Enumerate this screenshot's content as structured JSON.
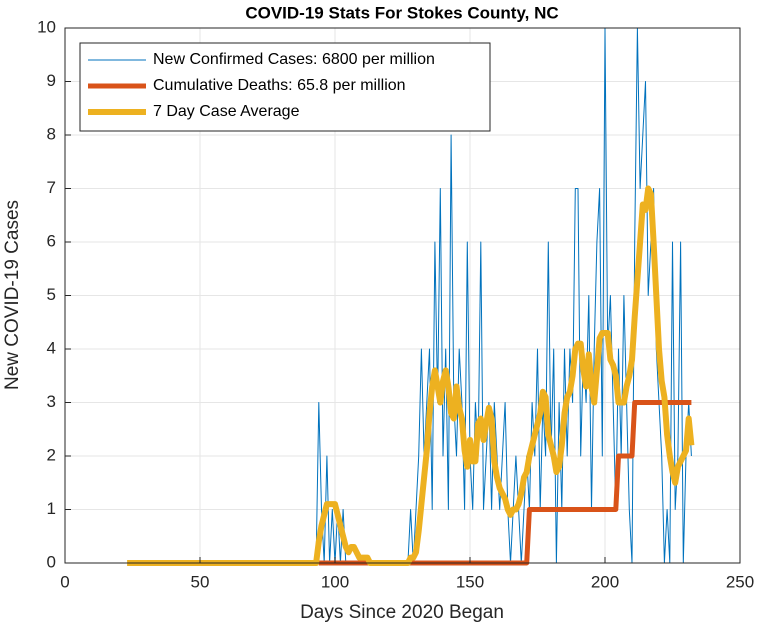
{
  "chart_data": {
    "type": "line",
    "title": "COVID-19 Stats For Stokes County, NC",
    "x_label": "Days Since 2020 Began",
    "y_label": "New COVID-19 Cases",
    "xlim": [
      0,
      250
    ],
    "xticks": [
      0,
      50,
      100,
      150,
      200,
      250
    ],
    "ylim": [
      0,
      10
    ],
    "yticks": [
      0,
      1,
      2,
      3,
      4,
      5,
      6,
      7,
      8,
      9,
      10
    ],
    "grid": true,
    "legend": "upper left",
    "x": [
      23,
      24,
      25,
      26,
      27,
      28,
      29,
      30,
      31,
      32,
      33,
      34,
      35,
      36,
      37,
      38,
      39,
      40,
      41,
      42,
      43,
      44,
      45,
      46,
      47,
      48,
      49,
      50,
      51,
      52,
      53,
      54,
      55,
      56,
      57,
      58,
      59,
      60,
      61,
      62,
      63,
      64,
      65,
      66,
      67,
      68,
      69,
      70,
      71,
      72,
      73,
      74,
      75,
      76,
      77,
      78,
      79,
      80,
      81,
      82,
      83,
      84,
      85,
      86,
      87,
      88,
      89,
      90,
      91,
      92,
      93,
      94,
      95,
      96,
      97,
      98,
      99,
      100,
      101,
      102,
      103,
      104,
      105,
      106,
      107,
      108,
      109,
      110,
      111,
      112,
      113,
      114,
      115,
      116,
      117,
      118,
      119,
      120,
      121,
      122,
      123,
      124,
      125,
      126,
      127,
      128,
      129,
      130,
      131,
      132,
      133,
      134,
      135,
      136,
      137,
      138,
      139,
      140,
      141,
      142,
      143,
      144,
      145,
      146,
      147,
      148,
      149,
      150,
      151,
      152,
      153,
      154,
      155,
      156,
      157,
      158,
      159,
      160,
      161,
      162,
      163,
      164,
      165,
      166,
      167,
      168,
      169,
      170,
      171,
      172,
      173,
      174,
      175,
      176,
      177,
      178,
      179,
      180,
      181,
      182,
      183,
      184,
      185,
      186,
      187,
      188,
      189,
      190,
      191,
      192,
      193,
      194,
      195,
      196,
      197,
      198,
      199,
      200,
      201,
      202,
      203,
      204,
      205,
      206,
      207,
      208,
      209,
      210,
      211,
      212,
      213,
      214,
      215,
      216,
      217,
      218,
      219,
      220,
      221,
      222,
      223,
      224,
      225,
      226,
      227,
      228,
      229,
      230,
      231,
      232
    ],
    "series": [
      {
        "name": "New Confirmed Cases: 6800 per million",
        "color": "#0072bd",
        "width": 1,
        "values": [
          0,
          0,
          0,
          0,
          0,
          0,
          0,
          0,
          0,
          0,
          0,
          0,
          0,
          0,
          0,
          0,
          0,
          0,
          0,
          0,
          0,
          0,
          0,
          0,
          0,
          0,
          0,
          0,
          0,
          0,
          0,
          0,
          0,
          0,
          0,
          0,
          0,
          0,
          0,
          0,
          0,
          0,
          0,
          0,
          0,
          0,
          0,
          0,
          0,
          0,
          0,
          0,
          0,
          0,
          0,
          0,
          0,
          0,
          0,
          0,
          0,
          0,
          0,
          0,
          0,
          0,
          0,
          0,
          0,
          0,
          0,
          3,
          1,
          0,
          2,
          0,
          1,
          0,
          1,
          0,
          1,
          0,
          0,
          0,
          0,
          0,
          0,
          0,
          0,
          0,
          0,
          0,
          0,
          0,
          0,
          0,
          0,
          0,
          0,
          0,
          0,
          0,
          0,
          0,
          0,
          1,
          0,
          1,
          2,
          4,
          2,
          3,
          4,
          1,
          6,
          3,
          7,
          2,
          4,
          1,
          8,
          3,
          2,
          4,
          3,
          1,
          6,
          2,
          1,
          3,
          2,
          6,
          1,
          2,
          3,
          1,
          3,
          2,
          1,
          2,
          3,
          1,
          0,
          1,
          2,
          1,
          0,
          1,
          2,
          1,
          3,
          2,
          4,
          1,
          3,
          2,
          6,
          2,
          4,
          0,
          3,
          1,
          4,
          2,
          4,
          3,
          7,
          7,
          2,
          4,
          3,
          5,
          1,
          4,
          6,
          7,
          2,
          10,
          4,
          5,
          3,
          1,
          4,
          2,
          5,
          3,
          1,
          0,
          6,
          10,
          7,
          8,
          9,
          5,
          6,
          7,
          4,
          3,
          2,
          0,
          1,
          0,
          6,
          1,
          2,
          6,
          0,
          2,
          3,
          2
        ]
      },
      {
        "name": "Cumulative Deaths: 65.8 per million",
        "color": "#d95319",
        "width": 5,
        "values": [
          null,
          null,
          null,
          null,
          null,
          null,
          null,
          null,
          null,
          null,
          null,
          null,
          null,
          null,
          null,
          null,
          null,
          null,
          null,
          null,
          null,
          null,
          null,
          null,
          null,
          null,
          null,
          null,
          null,
          null,
          null,
          null,
          null,
          null,
          null,
          null,
          null,
          null,
          null,
          null,
          null,
          null,
          null,
          null,
          null,
          null,
          null,
          null,
          null,
          null,
          null,
          null,
          null,
          null,
          null,
          null,
          null,
          null,
          null,
          null,
          null,
          null,
          null,
          null,
          null,
          null,
          null,
          null,
          null,
          null,
          null,
          0,
          0,
          0,
          0,
          0,
          0,
          0,
          0,
          0,
          0,
          0,
          0,
          0,
          0,
          0,
          0,
          0,
          0,
          0,
          0,
          0,
          0,
          0,
          0,
          0,
          0,
          0,
          0,
          0,
          0,
          0,
          0,
          0,
          0,
          0,
          0,
          0,
          0,
          0,
          0,
          0,
          0,
          0,
          0,
          0,
          0,
          0,
          0,
          0,
          0,
          0,
          0,
          0,
          0,
          0,
          0,
          0,
          0,
          0,
          0,
          0,
          0,
          0,
          0,
          0,
          0,
          0,
          0,
          0,
          0,
          0,
          0,
          0,
          0,
          0,
          0,
          0,
          0,
          1,
          1,
          1,
          1,
          1,
          1,
          1,
          1,
          1,
          1,
          1,
          1,
          1,
          1,
          1,
          1,
          1,
          1,
          1,
          1,
          1,
          1,
          1,
          1,
          1,
          1,
          1,
          1,
          1,
          1,
          1,
          1,
          1,
          2,
          2,
          2,
          2,
          2,
          2,
          3,
          3,
          3,
          3,
          3,
          3,
          3,
          3,
          3,
          3,
          3,
          3,
          3,
          3,
          3,
          3,
          3,
          3,
          3,
          3,
          3,
          3
        ]
      },
      {
        "name": "7 Day Case Average",
        "color": "#edb120",
        "width": 6,
        "values": [
          0,
          0,
          0,
          0,
          0,
          0,
          0,
          0,
          0,
          0,
          0,
          0,
          0,
          0,
          0,
          0,
          0,
          0,
          0,
          0,
          0,
          0,
          0,
          0,
          0,
          0,
          0,
          0,
          0,
          0,
          0,
          0,
          0,
          0,
          0,
          0,
          0,
          0,
          0,
          0,
          0,
          0,
          0,
          0,
          0,
          0,
          0,
          0,
          0,
          0,
          0,
          0,
          0,
          0,
          0,
          0,
          0,
          0,
          0,
          0,
          0,
          0,
          0,
          0,
          0,
          0,
          0,
          0,
          0,
          0,
          0,
          0.4,
          0.7,
          0.9,
          1.1,
          1.1,
          1.1,
          1.1,
          0.9,
          0.7,
          0.5,
          0.3,
          0.2,
          0.3,
          0.3,
          0.2,
          0.1,
          0.1,
          0.1,
          0.1,
          0,
          0,
          0,
          0,
          0,
          0,
          0,
          0,
          0,
          0,
          0,
          0,
          0,
          0,
          0,
          0.1,
          0.1,
          0.2,
          0.6,
          1.1,
          1.6,
          2.1,
          2.8,
          3.3,
          3.6,
          3.3,
          3.0,
          3.4,
          3.6,
          3.3,
          2.8,
          2.7,
          3.3,
          2.9,
          2.7,
          2.1,
          1.8,
          2.3,
          1.9,
          1.9,
          2.6,
          2.7,
          2.3,
          2.6,
          2.9,
          2.7,
          1.9,
          1.6,
          1.4,
          1.3,
          1.2,
          1.0,
          0.9,
          1.0,
          1.0,
          1.1,
          1.3,
          1.6,
          1.7,
          2.0,
          2.2,
          2.4,
          2.6,
          2.8,
          3.2,
          3.1,
          2.4,
          2.2,
          2.0,
          1.7,
          1.8,
          2.2,
          2.8,
          3.1,
          3.2,
          3.5,
          4.0,
          4.1,
          4.1,
          3.6,
          3.3,
          3.9,
          3.3,
          3.0,
          3.6,
          4.2,
          4.3,
          4.3,
          4.3,
          3.8,
          3.7,
          3.5,
          3.0,
          3.0,
          3.0,
          3.3,
          3.5,
          3.8,
          4.6,
          5.3,
          6.0,
          6.7,
          6.6,
          7.0,
          6.9,
          6.0,
          5.0,
          4.0,
          3.4,
          3.1,
          2.4,
          2.0,
          1.7,
          1.5,
          1.8,
          1.9,
          2.0,
          2.1,
          2.7,
          2.2
        ]
      }
    ]
  }
}
